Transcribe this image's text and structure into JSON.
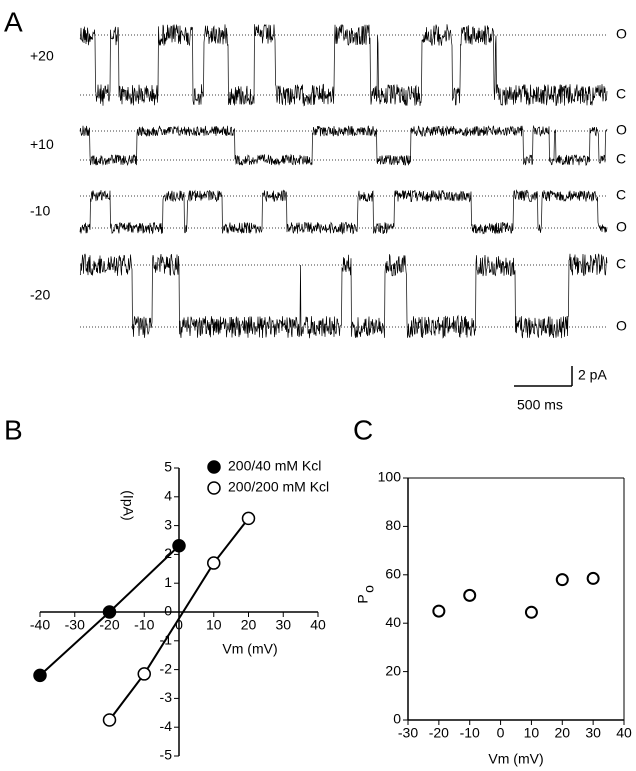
{
  "traces_panel": {
    "label": "A",
    "rows": [
      {
        "voltage": "+20",
        "upper_state": "O",
        "lower_state": "C"
      },
      {
        "voltage": "+10",
        "upper_state": "O",
        "lower_state": "C"
      },
      {
        "voltage": "-10",
        "upper_state": "C",
        "lower_state": "O"
      },
      {
        "voltage": "-20",
        "upper_state": "C",
        "lower_state": "O"
      }
    ],
    "scale_current": "2 pA",
    "scale_time": "500 ms"
  },
  "chart_data": [
    {
      "type": "line",
      "label": "B",
      "xlabel": "Vm (mV)",
      "ylabel": "(IpA)",
      "xlim": [
        -40,
        40
      ],
      "xticks": [
        -40,
        -30,
        -20,
        -10,
        0,
        10,
        20,
        30,
        40
      ],
      "ylim": [
        -5,
        5
      ],
      "yticks": [
        -5,
        -4,
        -3,
        -2,
        -1,
        0,
        1,
        2,
        3,
        4,
        5
      ],
      "series": [
        {
          "name": "200/40 mM Kcl",
          "color": "#000000",
          "marker_fill": "#000000",
          "x": [
            -40,
            -20,
            0
          ],
          "values": [
            -2.2,
            0,
            2.3
          ]
        },
        {
          "name": "200/200 mM Kcl",
          "color": "#000000",
          "marker_fill": "#ffffff",
          "x": [
            -20,
            -10,
            10,
            20
          ],
          "values": [
            -3.75,
            -2.15,
            1.7,
            3.25
          ]
        }
      ]
    },
    {
      "type": "scatter",
      "label": "C",
      "xlabel": "Vm (mV)",
      "ylabel": "P",
      "ylabel_sub": "o",
      "xlim": [
        -30,
        40
      ],
      "xticks": [
        -30,
        -20,
        -10,
        0,
        10,
        20,
        30,
        40
      ],
      "ylim": [
        0,
        100
      ],
      "yticks": [
        0,
        20,
        40,
        60,
        80,
        100
      ],
      "color": "#000000",
      "marker_fill": "#ffffff",
      "x": [
        -20,
        -10,
        10,
        20,
        30
      ],
      "values": [
        45,
        51.5,
        44.5,
        58,
        58.5
      ]
    }
  ]
}
